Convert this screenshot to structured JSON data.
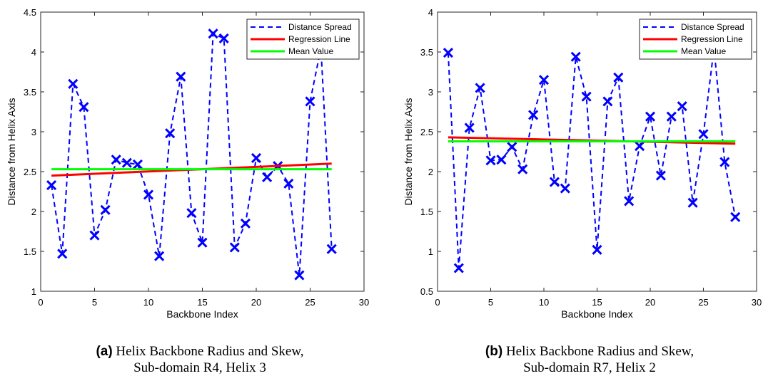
{
  "chart_data": [
    {
      "type": "line",
      "xlabel": "Backbone Index",
      "ylabel": "Distance from Helix Axis",
      "xlim": [
        0,
        30
      ],
      "ylim": [
        1,
        4.5
      ],
      "xticks": [
        "0",
        "5",
        "10",
        "15",
        "20",
        "25",
        "30"
      ],
      "yticks": [
        "1",
        "1.5",
        "2",
        "2.5",
        "3",
        "3.5",
        "4",
        "4.5"
      ],
      "legend_position": "top-right",
      "grid": false,
      "series": [
        {
          "name": "Distance Spread",
          "style": "dashed-x-markers",
          "color": "#0000ff",
          "x": [
            1,
            2,
            3,
            4,
            5,
            6,
            7,
            8,
            9,
            10,
            11,
            12,
            13,
            14,
            15,
            16,
            17,
            18,
            19,
            20,
            21,
            22,
            23,
            24,
            25,
            26,
            27
          ],
          "y": [
            2.33,
            1.47,
            3.6,
            3.31,
            1.7,
            2.02,
            2.65,
            2.61,
            2.59,
            2.21,
            1.44,
            2.98,
            3.69,
            1.98,
            1.61,
            4.23,
            4.17,
            1.55,
            1.85,
            2.67,
            2.43,
            2.57,
            2.35,
            1.2,
            3.38,
            4.05,
            1.53
          ]
        },
        {
          "name": "Regression Line",
          "color": "#ff0000",
          "x": [
            1,
            27
          ],
          "y": [
            2.45,
            2.6
          ]
        },
        {
          "name": "Mean Value",
          "color": "#00ff00",
          "x": [
            1,
            27
          ],
          "y": [
            2.53,
            2.53
          ]
        }
      ],
      "caption": {
        "tag": "(a)",
        "line1": "Helix Backbone Radius and Skew,",
        "line2": "Sub-domain R4, Helix 3"
      }
    },
    {
      "type": "line",
      "xlabel": "Backbone Index",
      "ylabel": "Distance from Helix Axis",
      "xlim": [
        0,
        30
      ],
      "ylim": [
        0.5,
        4
      ],
      "xticks": [
        "0",
        "5",
        "10",
        "15",
        "20",
        "25",
        "30"
      ],
      "yticks": [
        "0.5",
        "1",
        "1.5",
        "2",
        "2.5",
        "3",
        "3.5",
        "4"
      ],
      "legend_position": "top-right",
      "grid": false,
      "series": [
        {
          "name": "Distance Spread",
          "style": "dashed-x-markers",
          "color": "#0000ff",
          "x": [
            1,
            2,
            3,
            4,
            5,
            6,
            7,
            8,
            9,
            10,
            11,
            12,
            13,
            14,
            15,
            16,
            17,
            18,
            19,
            20,
            21,
            22,
            23,
            24,
            25,
            26,
            27,
            28
          ],
          "y": [
            3.49,
            0.79,
            2.55,
            3.05,
            2.14,
            2.15,
            2.31,
            2.03,
            2.71,
            3.15,
            1.87,
            1.79,
            3.44,
            2.94,
            1.02,
            2.88,
            3.18,
            1.63,
            2.32,
            2.69,
            1.95,
            2.69,
            2.82,
            1.61,
            2.47,
            3.55,
            2.12,
            1.43
          ]
        },
        {
          "name": "Regression Line",
          "color": "#ff0000",
          "x": [
            1,
            28
          ],
          "y": [
            2.43,
            2.35
          ]
        },
        {
          "name": "Mean Value",
          "color": "#00ff00",
          "x": [
            1,
            28
          ],
          "y": [
            2.38,
            2.38
          ]
        }
      ],
      "caption": {
        "tag": "(b)",
        "line1": "Helix Backbone Radius and Skew,",
        "line2": "Sub-domain R7, Helix 2"
      }
    }
  ]
}
